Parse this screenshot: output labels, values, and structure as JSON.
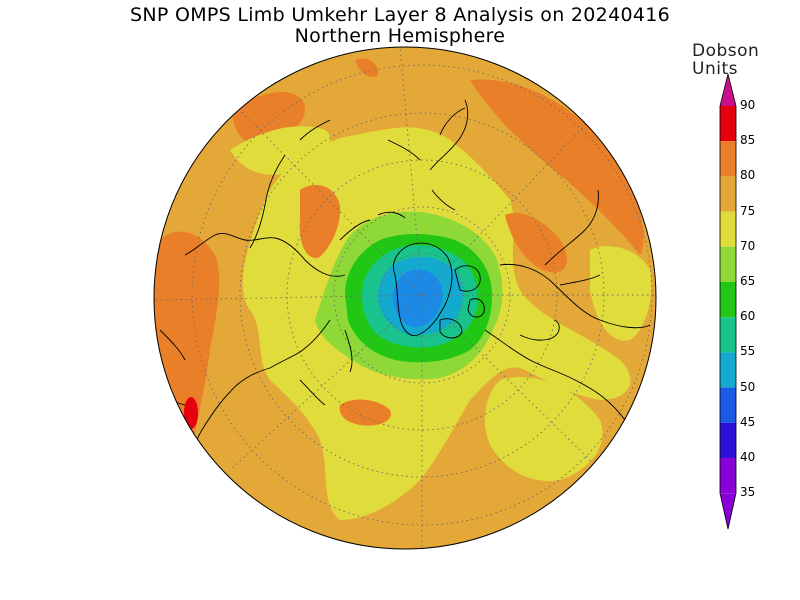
{
  "title": "SNP OMPS Limb Umkehr Layer 8 Analysis on 20240416",
  "subtitle": "Northern Hemisphere",
  "colorbar": {
    "units_line1": "Dobson",
    "units_line2": "Units",
    "levels": [
      {
        "label": "90",
        "color": "#c8108c"
      },
      {
        "label": "85",
        "color": "#e6000f"
      },
      {
        "label": "80",
        "color": "#ea7f2a"
      },
      {
        "label": "75",
        "color": "#e3a838"
      },
      {
        "label": "70",
        "color": "#e0dc3c"
      },
      {
        "label": "65",
        "color": "#8ed838"
      },
      {
        "label": "60",
        "color": "#22c614"
      },
      {
        "label": "55",
        "color": "#18c48c"
      },
      {
        "label": "50",
        "color": "#14aad0"
      },
      {
        "label": "45",
        "color": "#1a5ae6"
      },
      {
        "label": "40",
        "color": "#2a10d8"
      },
      {
        "label": "35",
        "color": "#8a00d8"
      }
    ]
  },
  "map": {
    "projection": "polar-stereographic",
    "hemisphere": "north",
    "field": "layer-8 ozone (Dobson Units)",
    "background_level_color": "#e3a838",
    "graticule": "dotted",
    "coastlines": true
  }
}
